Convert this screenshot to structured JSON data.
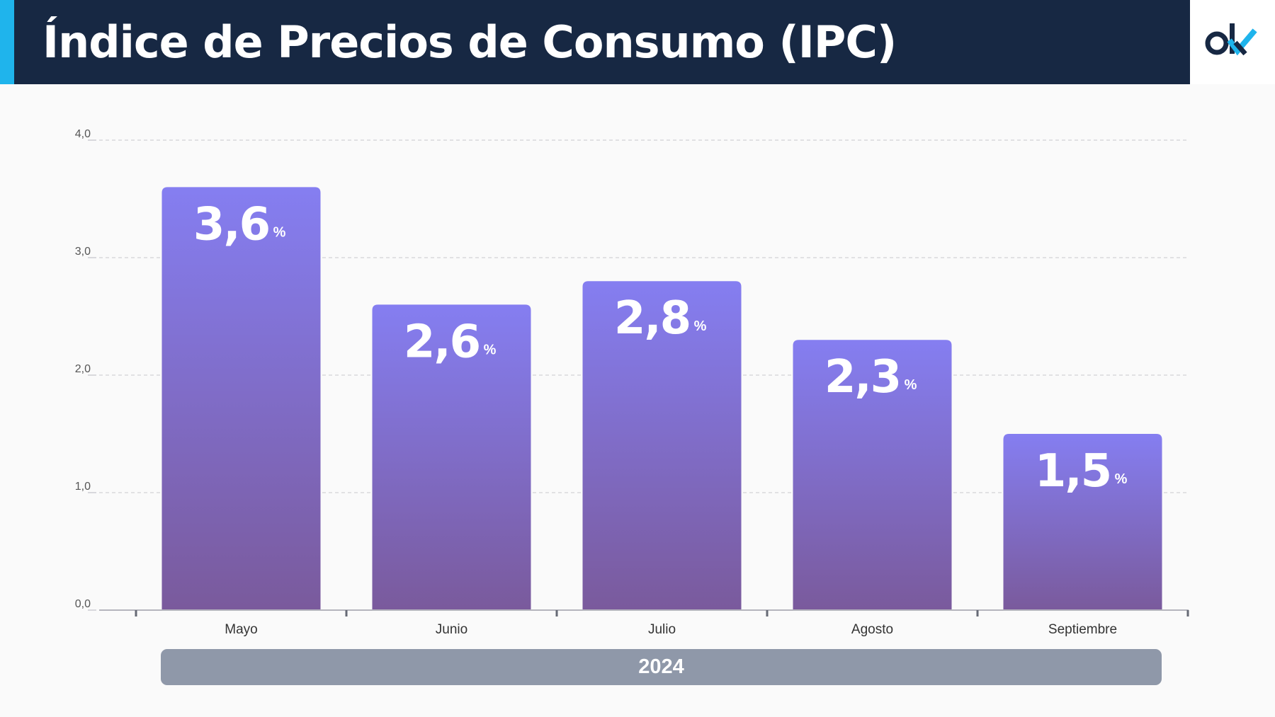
{
  "header": {
    "title": "Índice de Precios de Consumo (IPC)",
    "logo_text": "ok",
    "logo_icon": "ok-logo-icon",
    "colors": {
      "header_bg": "#172843",
      "accent": "#1fb4ec",
      "logo_dark": "#172843",
      "logo_check": "#1fb4ec"
    }
  },
  "chart_data": {
    "type": "bar",
    "title": "Índice de Precios de Consumo (IPC)",
    "categories": [
      "Mayo",
      "Junio",
      "Julio",
      "Agosto",
      "Septiembre"
    ],
    "values": [
      3.6,
      2.6,
      2.8,
      2.3,
      1.5
    ],
    "value_labels": [
      "3,6",
      "2,6",
      "2,8",
      "2,3",
      "1,5"
    ],
    "unit_label": "%",
    "ylim": [
      0,
      4
    ],
    "yticks": [
      0,
      1,
      2,
      3,
      4
    ],
    "ytick_labels": [
      "0,0",
      "1,0",
      "2,0",
      "3,0",
      "4,0"
    ],
    "group_label": "2024",
    "grid": true,
    "legend": "none",
    "colors": {
      "bar_top": "#857ef1",
      "bar_bottom": "#7a5a9c",
      "grid": "#c8c8cc",
      "axis": "#b5b5bd",
      "tick_text": "#555555"
    }
  }
}
